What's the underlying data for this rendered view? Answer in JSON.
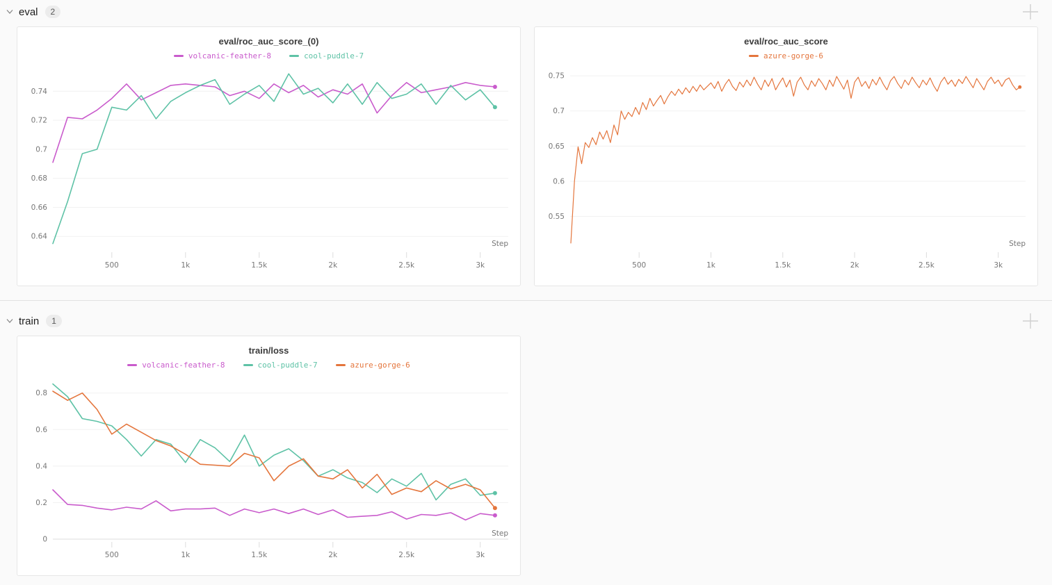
{
  "page": {
    "background": "#fafafa",
    "panel_background": "#ffffff",
    "divider_color": "#e2e2e2"
  },
  "sections": [
    {
      "label": "eval",
      "count": "2"
    },
    {
      "label": "train",
      "count": "1"
    }
  ],
  "icons": {
    "chevron": "chevron-down",
    "add_panel": "plus"
  },
  "runs": [
    {
      "name": "volcanic-feather-8",
      "color": "#c95bcc"
    },
    {
      "name": "cool-puddle-7",
      "color": "#5ec2a6"
    },
    {
      "name": "azure-gorge-6",
      "color": "#e4753c"
    }
  ],
  "chart_data": [
    {
      "type": "line",
      "title": "eval/roc_auc_score_(0)",
      "xlabel": "Step",
      "ylabel": "",
      "xlim": [
        100,
        3190
      ],
      "ylim": [
        0.631,
        0.7545
      ],
      "grid": true,
      "legend_position": "top-center",
      "xticks": [
        500,
        1000,
        1500,
        2000,
        2500,
        3000
      ],
      "xtick_labels": [
        "500",
        "1k",
        "1.5k",
        "2k",
        "2.5k",
        "3k"
      ],
      "yticks": [
        0.64,
        0.66,
        0.68,
        0.7,
        0.72,
        0.74
      ],
      "ytick_labels": [
        "0.64",
        "0.66",
        "0.68",
        "0.7",
        "0.72",
        "0.74"
      ],
      "line_width": 1.6,
      "dot_r": 3,
      "x": [
        100,
        200,
        300,
        400,
        500,
        600,
        700,
        800,
        900,
        1000,
        1100,
        1200,
        1300,
        1400,
        1500,
        1600,
        1700,
        1800,
        1900,
        2000,
        2100,
        2200,
        2300,
        2400,
        2500,
        2600,
        2700,
        2800,
        2900,
        3000,
        3100
      ],
      "series": [
        {
          "name": "volcanic-feather-8",
          "color": "#c95bcc",
          "values": [
            0.691,
            0.722,
            0.721,
            0.727,
            0.735,
            0.745,
            0.734,
            0.739,
            0.744,
            0.745,
            0.744,
            0.743,
            0.737,
            0.74,
            0.735,
            0.745,
            0.739,
            0.744,
            0.736,
            0.741,
            0.738,
            0.745,
            0.725,
            0.737,
            0.746,
            0.739,
            0.741,
            0.743,
            0.746,
            0.744,
            0.743
          ]
        },
        {
          "name": "cool-puddle-7",
          "color": "#5ec2a6",
          "values": [
            0.635,
            0.664,
            0.697,
            0.7,
            0.729,
            0.727,
            0.737,
            0.721,
            0.733,
            0.739,
            0.744,
            0.748,
            0.731,
            0.738,
            0.744,
            0.733,
            0.752,
            0.738,
            0.742,
            0.732,
            0.745,
            0.731,
            0.746,
            0.735,
            0.738,
            0.745,
            0.731,
            0.744,
            0.734,
            0.741,
            0.729
          ]
        }
      ]
    },
    {
      "type": "line",
      "title": "eval/roc_auc_score",
      "xlabel": "Step",
      "ylabel": "",
      "xlim": [
        20,
        3190
      ],
      "ylim": [
        0.503,
        0.758
      ],
      "grid": true,
      "legend_position": "top-center",
      "xticks": [
        500,
        1000,
        1500,
        2000,
        2500,
        3000
      ],
      "xtick_labels": [
        "500",
        "1k",
        "1.5k",
        "2k",
        "2.5k",
        "3k"
      ],
      "yticks": [
        0.55,
        0.6,
        0.65,
        0.7,
        0.75
      ],
      "ytick_labels": [
        "0.55",
        "0.6",
        "0.65",
        "0.7",
        "0.75"
      ],
      "line_width": 1.2,
      "dot_r": 2.5,
      "x_start": 25,
      "x_step": 25,
      "series": [
        {
          "name": "azure-gorge-6",
          "color": "#e4753c",
          "values": [
            0.512,
            0.6,
            0.649,
            0.625,
            0.655,
            0.648,
            0.662,
            0.652,
            0.67,
            0.66,
            0.672,
            0.655,
            0.68,
            0.666,
            0.7,
            0.688,
            0.698,
            0.692,
            0.705,
            0.695,
            0.712,
            0.702,
            0.718,
            0.707,
            0.715,
            0.722,
            0.71,
            0.72,
            0.728,
            0.722,
            0.731,
            0.724,
            0.733,
            0.726,
            0.735,
            0.728,
            0.737,
            0.73,
            0.735,
            0.74,
            0.732,
            0.742,
            0.728,
            0.738,
            0.745,
            0.735,
            0.729,
            0.741,
            0.734,
            0.744,
            0.736,
            0.748,
            0.738,
            0.73,
            0.744,
            0.735,
            0.746,
            0.73,
            0.739,
            0.747,
            0.734,
            0.744,
            0.721,
            0.741,
            0.748,
            0.737,
            0.73,
            0.743,
            0.735,
            0.746,
            0.739,
            0.73,
            0.744,
            0.735,
            0.749,
            0.74,
            0.731,
            0.744,
            0.718,
            0.741,
            0.748,
            0.735,
            0.742,
            0.732,
            0.745,
            0.737,
            0.748,
            0.738,
            0.73,
            0.743,
            0.749,
            0.739,
            0.732,
            0.744,
            0.737,
            0.748,
            0.74,
            0.733,
            0.744,
            0.737,
            0.747,
            0.736,
            0.728,
            0.741,
            0.748,
            0.738,
            0.744,
            0.735,
            0.745,
            0.739,
            0.749,
            0.741,
            0.733,
            0.746,
            0.738,
            0.73,
            0.742,
            0.748,
            0.739,
            0.744,
            0.735,
            0.744,
            0.747,
            0.737,
            0.73,
            0.734
          ]
        }
      ]
    },
    {
      "type": "line",
      "title": "train/loss",
      "xlabel": "Step",
      "ylabel": "",
      "xlim": [
        100,
        3190
      ],
      "ylim": [
        0,
        0.875
      ],
      "grid": true,
      "legend_position": "top-center",
      "xticks": [
        500,
        1000,
        1500,
        2000,
        2500,
        3000
      ],
      "xtick_labels": [
        "500",
        "1k",
        "1.5k",
        "2k",
        "2.5k",
        "3k"
      ],
      "yticks": [
        0,
        0.2,
        0.4,
        0.6,
        0.8
      ],
      "ytick_labels": [
        "0",
        "0.2",
        "0.4",
        "0.6",
        "0.8"
      ],
      "line_width": 1.6,
      "dot_r": 3,
      "x": [
        100,
        200,
        300,
        400,
        500,
        600,
        700,
        800,
        900,
        1000,
        1100,
        1200,
        1300,
        1400,
        1500,
        1600,
        1700,
        1800,
        1900,
        2000,
        2100,
        2200,
        2300,
        2400,
        2500,
        2600,
        2700,
        2800,
        2900,
        3000,
        3100
      ],
      "series": [
        {
          "name": "volcanic-feather-8",
          "color": "#c95bcc",
          "values": [
            0.27,
            0.19,
            0.185,
            0.17,
            0.16,
            0.175,
            0.165,
            0.21,
            0.155,
            0.165,
            0.165,
            0.17,
            0.13,
            0.165,
            0.145,
            0.165,
            0.14,
            0.165,
            0.135,
            0.16,
            0.12,
            0.125,
            0.13,
            0.15,
            0.11,
            0.135,
            0.13,
            0.145,
            0.105,
            0.14,
            0.13
          ]
        },
        {
          "name": "cool-puddle-7",
          "color": "#5ec2a6",
          "values": [
            0.85,
            0.78,
            0.66,
            0.645,
            0.62,
            0.545,
            0.455,
            0.545,
            0.52,
            0.42,
            0.545,
            0.5,
            0.425,
            0.57,
            0.4,
            0.46,
            0.495,
            0.43,
            0.345,
            0.38,
            0.335,
            0.31,
            0.255,
            0.33,
            0.29,
            0.36,
            0.215,
            0.3,
            0.33,
            0.24,
            0.252
          ]
        },
        {
          "name": "azure-gorge-6",
          "color": "#e4753c",
          "values": [
            0.81,
            0.76,
            0.8,
            0.71,
            0.575,
            0.63,
            0.585,
            0.54,
            0.51,
            0.465,
            0.41,
            0.405,
            0.4,
            0.47,
            0.445,
            0.32,
            0.4,
            0.44,
            0.345,
            0.33,
            0.38,
            0.28,
            0.355,
            0.245,
            0.28,
            0.26,
            0.32,
            0.275,
            0.3,
            0.27,
            0.17
          ]
        }
      ]
    }
  ]
}
